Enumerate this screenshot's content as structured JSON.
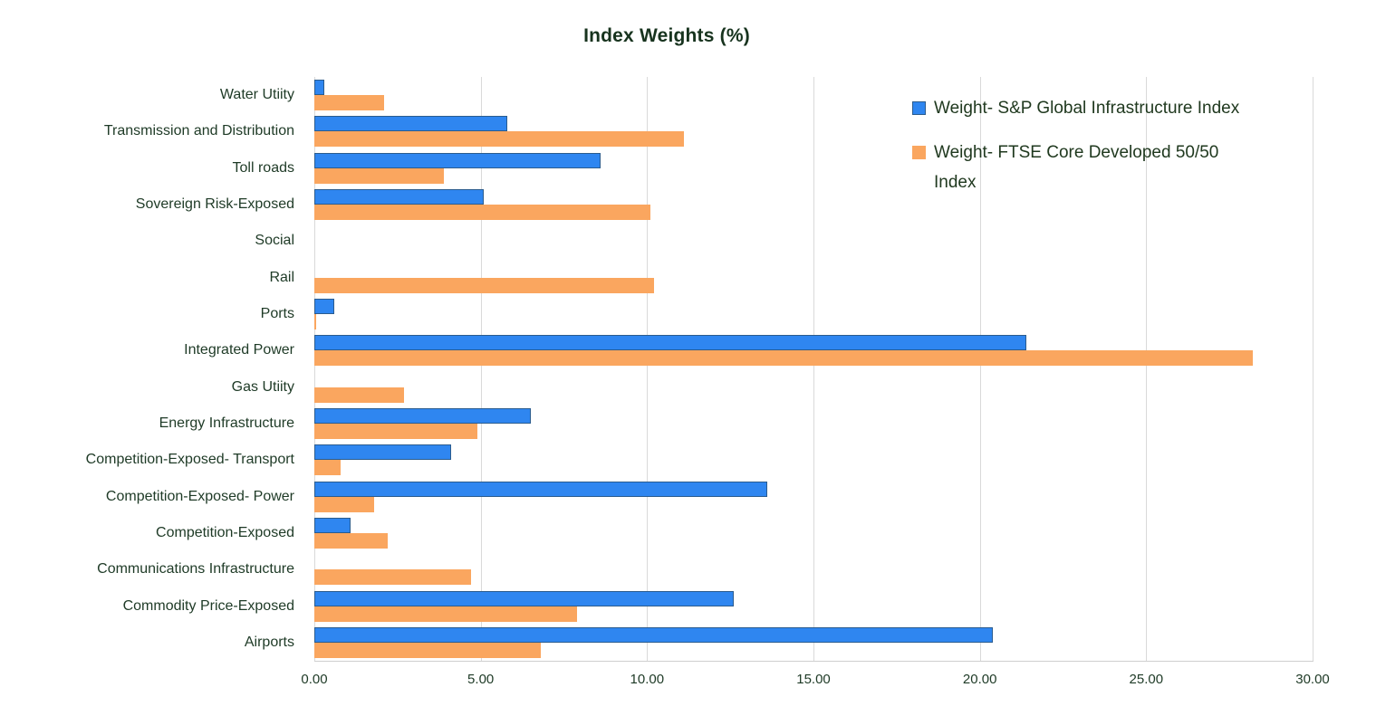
{
  "title": "Index Weights (%)",
  "chart_data": {
    "type": "bar",
    "orientation": "horizontal",
    "title": "Index Weights (%)",
    "xlabel": "",
    "ylabel": "",
    "xlim": [
      0,
      30
    ],
    "x_ticks": [
      "0.00",
      "5.00",
      "10.00",
      "15.00",
      "20.00",
      "25.00",
      "30.00"
    ],
    "x_tick_values": [
      0,
      5,
      10,
      15,
      20,
      25,
      30
    ],
    "grid": true,
    "legend_position": "top-right-inside",
    "categories": [
      "Water Utiity",
      "Transmission and Distribution",
      "Toll roads",
      "Sovereign Risk-Exposed",
      "Social",
      "Rail",
      "Ports",
      "Integrated Power",
      "Gas Utiity",
      "Energy Infrastructure",
      "Competition-Exposed- Transport",
      "Competition-Exposed- Power",
      "Competition-Exposed",
      "Communications Infrastructure",
      "Commodity Price-Exposed",
      "Airports"
    ],
    "series": [
      {
        "name": "Weight- S&P Global Infrastructure Index",
        "color": "#2f86f0",
        "border_color": "#2b5c8e",
        "values": [
          0.3,
          5.8,
          8.6,
          5.1,
          0,
          0,
          0.6,
          21.4,
          0,
          6.5,
          4.1,
          13.6,
          1.1,
          0,
          12.6,
          20.4
        ]
      },
      {
        "name": "Weight- FTSE Core Developed 50/50 Index",
        "color": "#faa65f",
        "border_color": null,
        "values": [
          2.1,
          11.1,
          3.9,
          10.1,
          0,
          10.2,
          0.05,
          28.2,
          2.7,
          4.9,
          0.8,
          1.8,
          2.2,
          4.7,
          7.9,
          6.8
        ]
      }
    ]
  },
  "colors": {
    "background": "#ffffff",
    "title_text": "#17331e",
    "label_text": "#1e3a26",
    "gridline": "#d9d9d9",
    "series_blue": "#2f86f0",
    "series_blue_border": "#2b5c8e",
    "series_orange": "#faa65f"
  }
}
